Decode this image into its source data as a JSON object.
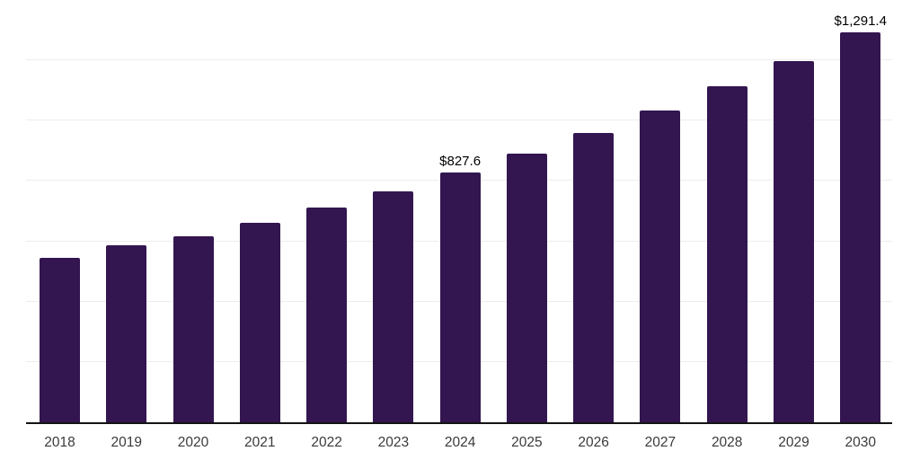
{
  "chart_data": {
    "type": "bar",
    "title": "",
    "xlabel": "",
    "ylabel": "",
    "categories": [
      "2018",
      "2019",
      "2020",
      "2021",
      "2022",
      "2023",
      "2024",
      "2025",
      "2026",
      "2027",
      "2028",
      "2029",
      "2030"
    ],
    "values": [
      546,
      588,
      616,
      661,
      713,
      767,
      827.6,
      891,
      959,
      1034,
      1113,
      1198,
      1291.4
    ],
    "value_labels": [
      "",
      "",
      "",
      "",
      "",
      "",
      "$827.6",
      "",
      "",
      "",
      "",
      "",
      "$1,291.4"
    ],
    "ylim": [
      0,
      1400
    ],
    "grid_step": 200,
    "grid": true,
    "y_tick_labels_visible": false,
    "legend_position": "none",
    "colors": {
      "bar": "#331550",
      "gridline": "#ededed",
      "axis": "#141414",
      "tick_label": "#3a3a3a",
      "data_label": "#000000",
      "background": "#ffffff"
    }
  }
}
